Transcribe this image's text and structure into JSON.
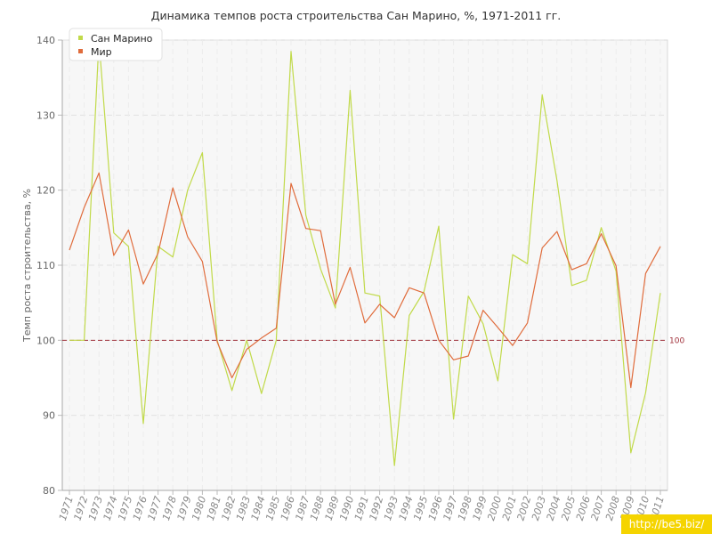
{
  "chart_data": {
    "type": "line",
    "title": "Динамика темпов роста строительства Сан Марино, %, 1971-2011 гг.",
    "xlabel": "",
    "ylabel": "Темп роста строительства, %",
    "ylim": [
      80,
      140
    ],
    "yticks": [
      "80",
      "90",
      "100",
      "110",
      "120",
      "130",
      "140"
    ],
    "categories": [
      "1971",
      "1972",
      "1973",
      "1974",
      "1975",
      "1976",
      "1977",
      "1978",
      "1979",
      "1980",
      "1981",
      "1982",
      "1983",
      "1984",
      "1985",
      "1986",
      "1987",
      "1988",
      "1989",
      "1990",
      "1991",
      "1992",
      "1993",
      "1994",
      "1995",
      "1996",
      "1997",
      "1998",
      "1999",
      "2000",
      "2001",
      "2002",
      "2003",
      "2004",
      "2005",
      "2006",
      "2007",
      "2008",
      "2009",
      "2010",
      "2011"
    ],
    "series": [
      {
        "name": "Сан Марино",
        "color": "#c1da4a",
        "values": [
          100,
          100,
          140,
          114.3,
          112.5,
          88.9,
          112.5,
          111.1,
          120,
          125,
          100,
          93.3,
          100,
          92.9,
          100,
          138.5,
          116.7,
          109.5,
          104.3,
          133.3,
          106.3,
          105.9,
          83.3,
          103.3,
          106.5,
          115.2,
          89.5,
          105.9,
          102.2,
          94.6,
          111.4,
          110.2,
          132.7,
          121.3,
          107.3,
          108,
          115,
          109.2,
          85,
          93,
          106.3
        ]
      },
      {
        "name": "Мир",
        "color": "#e06c3c",
        "values": [
          112,
          117.7,
          122.3,
          111.3,
          114.7,
          107.5,
          111.6,
          120.3,
          113.8,
          110.5,
          99.8,
          95,
          98.8,
          100.3,
          101.6,
          120.9,
          114.9,
          114.6,
          104.8,
          109.7,
          102.3,
          104.8,
          103,
          107,
          106.3,
          100,
          97.4,
          97.9,
          104,
          101.7,
          99.3,
          102.3,
          112.3,
          114.5,
          109.4,
          110.2,
          114.2,
          109.9,
          93.7,
          108.9,
          112.5
        ]
      }
    ],
    "reference_line": {
      "value": 100,
      "label": "100",
      "color": "#a0303a"
    },
    "grid": true,
    "legend_position": "top-left"
  },
  "watermark": "http://be5.biz/"
}
